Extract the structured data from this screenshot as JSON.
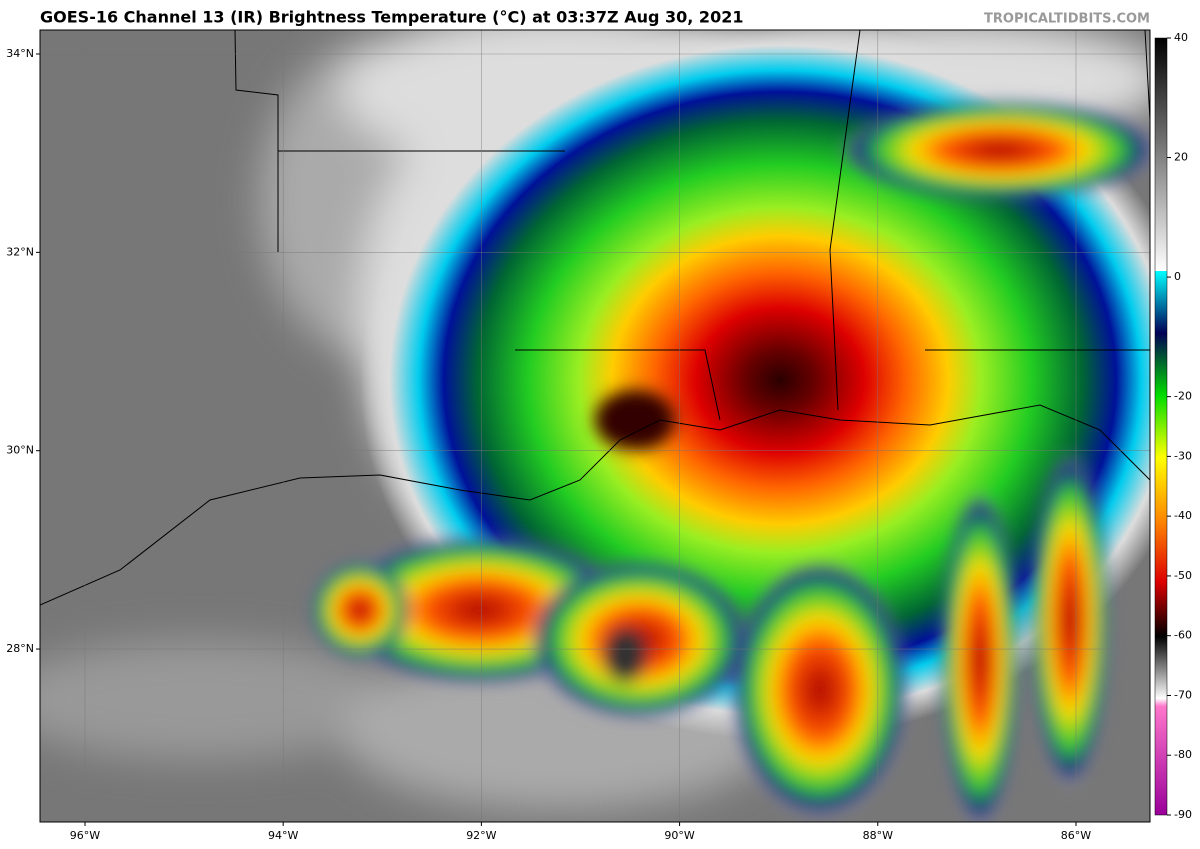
{
  "map": {
    "title": "GOES-16 Channel 13 (IR) Brightness Temperature (°C) at 03:37Z Aug 30, 2021",
    "source": "TROPICALTIDBITS.COM",
    "lonlim": [
      -96.454,
      -85.253
    ],
    "latlim": [
      26.256,
      34.242
    ],
    "lonticks": [
      {
        "value": -96,
        "label": "96°W"
      },
      {
        "value": -94,
        "label": "94°W"
      },
      {
        "value": -92,
        "label": "92°W"
      },
      {
        "value": -90,
        "label": "90°W"
      },
      {
        "value": -88,
        "label": "88°W"
      },
      {
        "value": -86,
        "label": "86°W"
      }
    ],
    "latticks": [
      {
        "value": 34,
        "label": "34°N"
      },
      {
        "value": 32,
        "label": "32°N"
      },
      {
        "value": 30,
        "label": "30°N"
      },
      {
        "value": 28,
        "label": "28°N"
      }
    ],
    "colorbar": {
      "lim": [
        -90,
        40
      ],
      "ticks": [
        40,
        20,
        0,
        -20,
        -30,
        -40,
        -50,
        -60,
        -70,
        -80,
        -90
      ]
    }
  }
}
